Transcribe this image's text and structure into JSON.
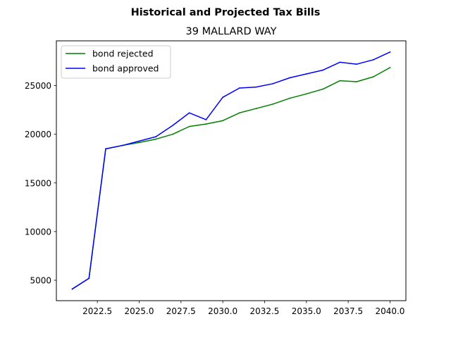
{
  "figure": {
    "suptitle": "Historical and Projected Tax Bills",
    "title": "39 MALLARD WAY"
  },
  "chart_data": {
    "type": "line",
    "suptitle": "Historical and Projected Tax Bills",
    "title": "39 MALLARD WAY",
    "xlabel": "",
    "ylabel": "",
    "xlim": [
      2020.05,
      2040.95
    ],
    "ylim": [
      2900,
      29600
    ],
    "grid": false,
    "legend_position": "upper left",
    "x": [
      2021,
      2022,
      2023,
      2024,
      2025,
      2026,
      2027,
      2028,
      2029,
      2030,
      2031,
      2032,
      2033,
      2034,
      2035,
      2036,
      2037,
      2038,
      2039,
      2040
    ],
    "series": [
      {
        "name": "bond rejected",
        "color": "#008000",
        "values": [
          4100,
          5200,
          18500,
          18850,
          19150,
          19500,
          20000,
          20800,
          21050,
          21400,
          22200,
          22650,
          23100,
          23700,
          24150,
          24650,
          25500,
          25400,
          25900,
          26850
        ]
      },
      {
        "name": "bond approved",
        "color": "#0000ff",
        "values": [
          4100,
          5200,
          18500,
          18850,
          19300,
          19750,
          20900,
          22200,
          21500,
          23800,
          24750,
          24850,
          25200,
          25800,
          26200,
          26600,
          27400,
          27200,
          27650,
          28450
        ]
      }
    ],
    "xticks": [
      2022.5,
      2025.0,
      2027.5,
      2030.0,
      2032.5,
      2035.0,
      2037.5,
      2040.0
    ],
    "xtick_labels": [
      "2022.5",
      "2025.0",
      "2027.5",
      "2030.0",
      "2032.5",
      "2035.0",
      "2037.5",
      "2040.0"
    ],
    "yticks": [
      5000,
      10000,
      15000,
      20000,
      25000
    ],
    "ytick_labels": [
      "5000",
      "10000",
      "15000",
      "20000",
      "25000"
    ]
  }
}
